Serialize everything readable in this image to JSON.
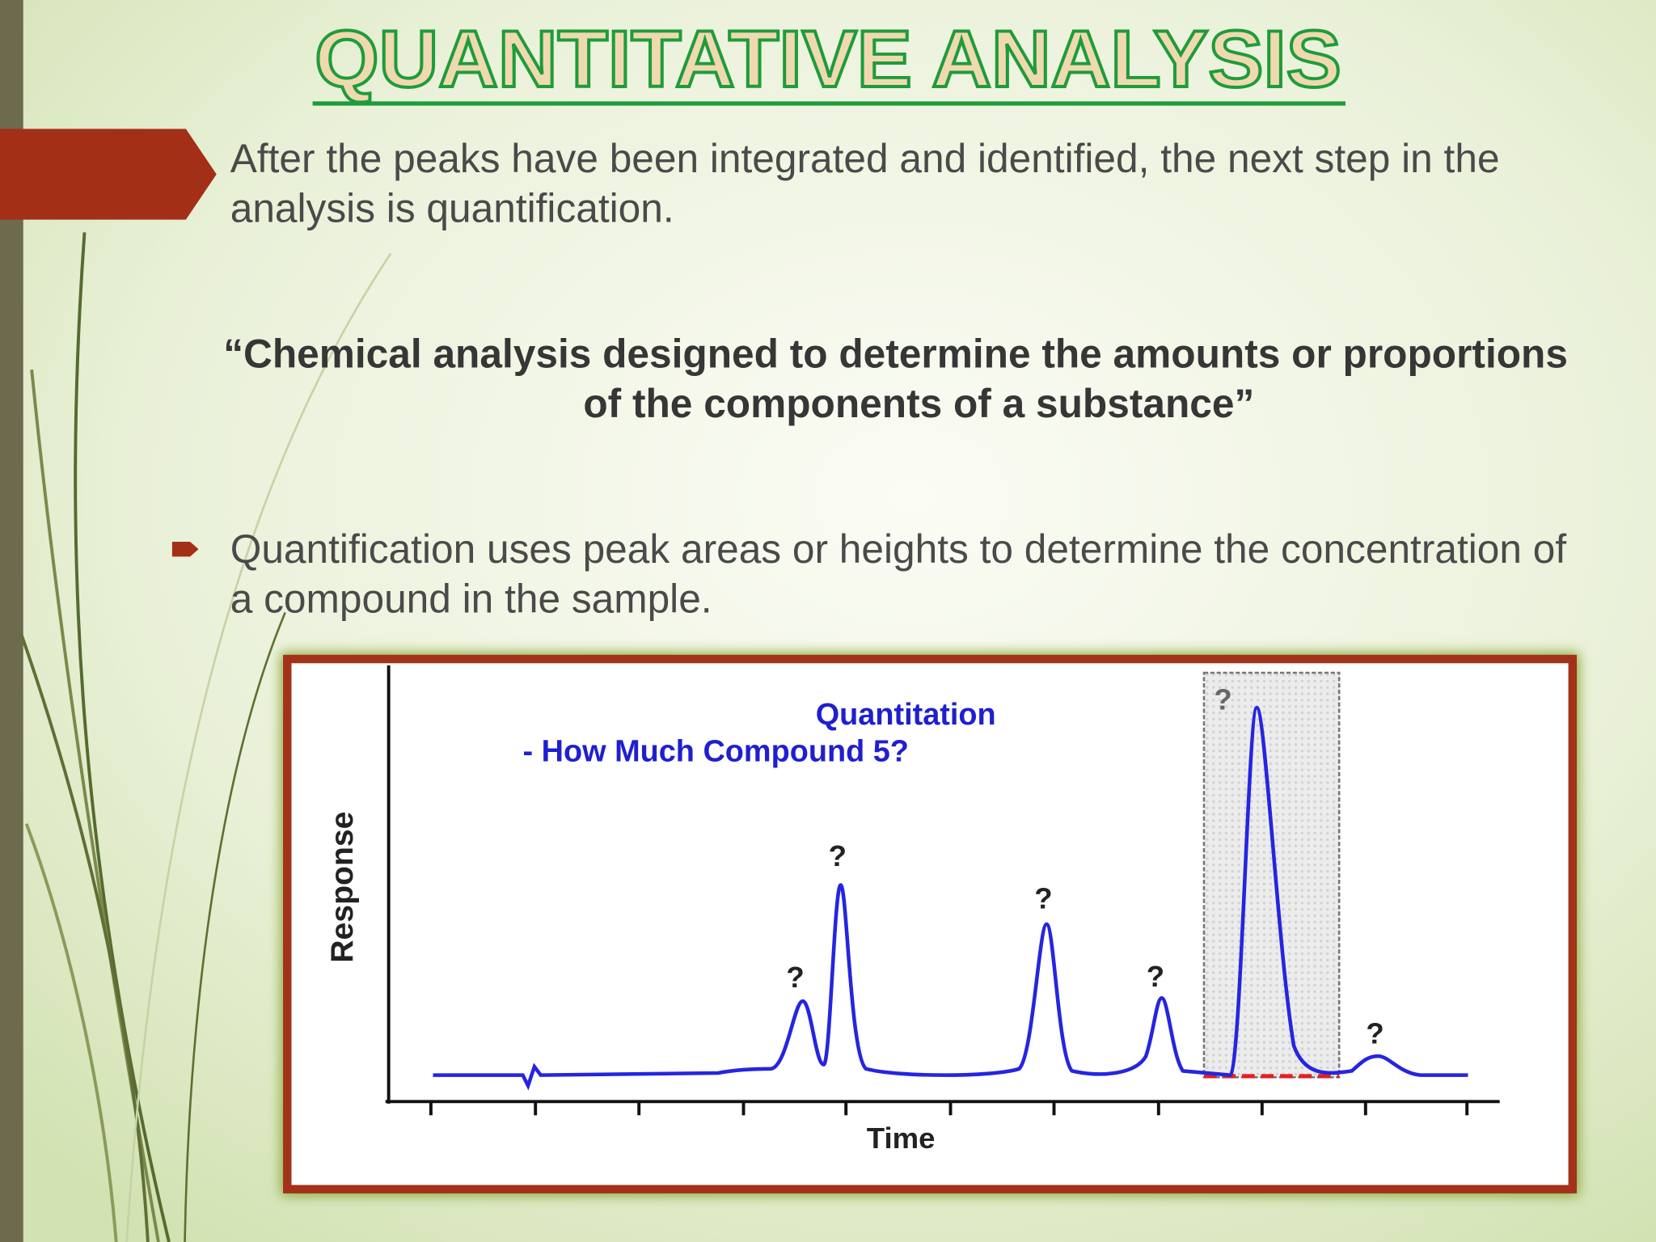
{
  "header": {
    "title": "QUANTITATIVE ANALYSIS"
  },
  "body": {
    "intro_lines": [
      "After the peaks have been integrated and identified, the next step in the",
      "analysis is quantification."
    ],
    "quote_lines": [
      "“Chemical analysis designed to determine the amounts or proportions",
      "of the components of a substance”"
    ],
    "bullet_lines": [
      "Quantification uses peak areas or heights to determine the concentration of",
      "a compound in the sample."
    ]
  },
  "figure": {
    "title_lines": [
      "Quantitation",
      "- How Much Compound 5?"
    ],
    "y_axis_label": "Response",
    "x_axis_label": "Time",
    "peak_labels": [
      "?",
      "?",
      "?",
      "?",
      "?",
      "?"
    ]
  }
}
